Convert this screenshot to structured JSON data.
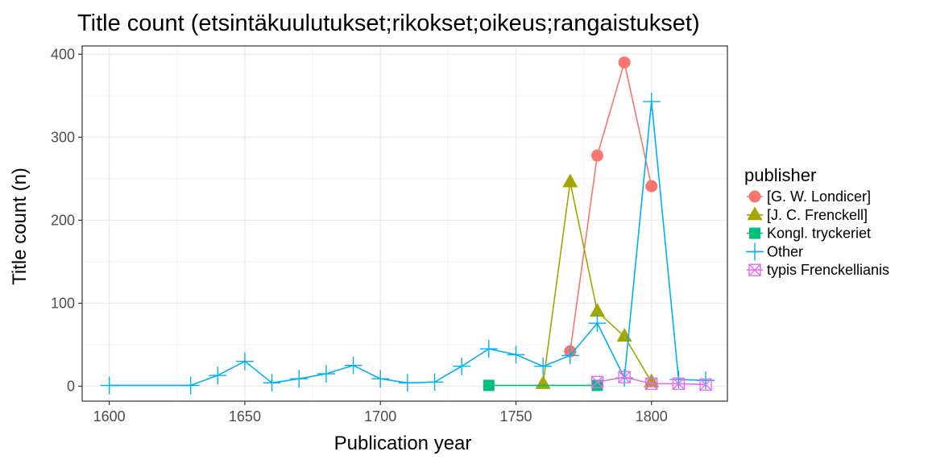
{
  "chart_data": {
    "type": "line",
    "title": "Title count (etsintäkuulutukset;rikokset;oikeus;rangaistukset)",
    "xlabel": "Publication year",
    "ylabel": "Title count (n)",
    "xlim": [
      1590,
      1828
    ],
    "ylim": [
      -18,
      410
    ],
    "x_ticks": [
      1600,
      1650,
      1700,
      1750,
      1800
    ],
    "y_ticks": [
      0,
      100,
      200,
      300,
      400
    ],
    "grid": true,
    "legend_position": "right",
    "legend_title": "publisher",
    "series": [
      {
        "name": "[G. W. Londicer]",
        "color": "#F8766D",
        "marker": "circle",
        "points": [
          [
            1770,
            42
          ],
          [
            1780,
            278
          ],
          [
            1790,
            390
          ],
          [
            1800,
            241
          ]
        ]
      },
      {
        "name": "[J. C. Frenckell]",
        "color": "#A3A500",
        "marker": "triangle",
        "points": [
          [
            1760,
            3
          ],
          [
            1770,
            246
          ],
          [
            1780,
            90
          ],
          [
            1790,
            60
          ],
          [
            1800,
            5
          ]
        ]
      },
      {
        "name": "Kongl. tryckeriet",
        "color": "#00BF7D",
        "marker": "square",
        "points": [
          [
            1740,
            1
          ],
          [
            1780,
            1
          ]
        ]
      },
      {
        "name": "Other",
        "color": "#00B0F6",
        "marker": "plus",
        "points": [
          [
            1600,
            1
          ],
          [
            1630,
            1
          ],
          [
            1640,
            13
          ],
          [
            1650,
            30
          ],
          [
            1660,
            4
          ],
          [
            1670,
            9
          ],
          [
            1680,
            15
          ],
          [
            1690,
            25
          ],
          [
            1700,
            9
          ],
          [
            1710,
            4
          ],
          [
            1720,
            5
          ],
          [
            1730,
            24
          ],
          [
            1740,
            45
          ],
          [
            1750,
            38
          ],
          [
            1760,
            24
          ],
          [
            1770,
            37
          ],
          [
            1780,
            76
          ],
          [
            1790,
            10
          ],
          [
            1800,
            343
          ],
          [
            1810,
            8
          ],
          [
            1820,
            7
          ]
        ]
      },
      {
        "name": "typis Frenckellianis",
        "color": "#E76BF3",
        "marker": "boxtimes",
        "points": [
          [
            1780,
            5
          ],
          [
            1790,
            11
          ],
          [
            1800,
            3
          ],
          [
            1810,
            3
          ],
          [
            1820,
            2
          ]
        ]
      }
    ]
  }
}
